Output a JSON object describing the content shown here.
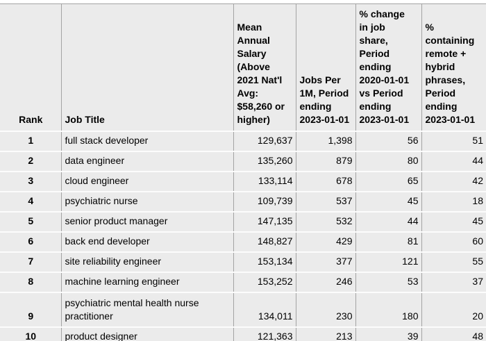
{
  "style": {
    "page_bg": "#ffffff",
    "cell_bg": "#ebebeb",
    "grid_vertical": "#a3a3a3",
    "grid_horizontal": "#fcfcfc",
    "text": "#000000"
  },
  "chart_data": {
    "type": "table",
    "columns": [
      {
        "id": "rank",
        "label": "Rank"
      },
      {
        "id": "job-title",
        "label": "Job Title"
      },
      {
        "id": "mean-annual-salary",
        "label": "Mean\nAnnual\nSalary\n(Above\n2021 Nat'l\nAvg:\n$58,260 or\nhigher)"
      },
      {
        "id": "jobs-per-1m",
        "label": "Jobs Per\n1M, Period\nending\n2023-01-01"
      },
      {
        "id": "pct-change-job-share",
        "label": "% change\nin job\nshare,\nPeriod\nending\n2020-01-01\nvs Period\nending\n2023-01-01"
      },
      {
        "id": "pct-remote-hybrid",
        "label": "%\ncontaining\nremote +\nhybrid\nphrases,\nPeriod\nending\n2023-01-01"
      }
    ],
    "rows": [
      [
        "1",
        "full stack developer",
        "129,637",
        "1,398",
        "56",
        "51"
      ],
      [
        "2",
        "data engineer",
        "135,260",
        "879",
        "80",
        "44"
      ],
      [
        "3",
        "cloud engineer",
        "133,114",
        "678",
        "65",
        "42"
      ],
      [
        "4",
        "psychiatric nurse",
        "109,739",
        "537",
        "45",
        "18"
      ],
      [
        "5",
        "senior product manager",
        "147,135",
        "532",
        "44",
        "45"
      ],
      [
        "6",
        "back end developer",
        "148,827",
        "429",
        "81",
        "60"
      ],
      [
        "7",
        "site reliability engineer",
        "153,134",
        "377",
        "121",
        "55"
      ],
      [
        "8",
        "machine learning engineer",
        "153,252",
        "246",
        "53",
        "37"
      ],
      [
        "9",
        "psychiatric mental health nurse practitioner",
        "134,011",
        "230",
        "180",
        "20"
      ],
      [
        "10",
        "product designer",
        "121,363",
        "213",
        "39",
        "48"
      ]
    ],
    "partial_bottom_row": true
  }
}
